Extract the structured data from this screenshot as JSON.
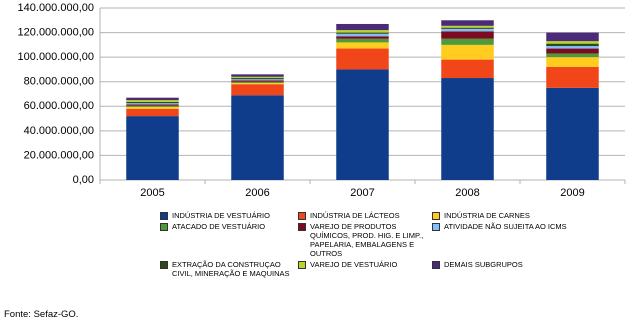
{
  "chart_data": {
    "type": "stacked_bar",
    "categories": [
      "2005",
      "2006",
      "2007",
      "2008",
      "2009"
    ],
    "series": [
      {
        "name": "INDÚSTRIA DE VESTUÁRIO",
        "color": "#0f3d8c",
        "values": [
          52000000,
          69000000,
          90000000,
          83000000,
          75000000
        ]
      },
      {
        "name": "INDÚSTRIA DE LÁCTEOS",
        "color": "#f0461a",
        "values": [
          6000000,
          9000000,
          17000000,
          15000000,
          17000000
        ]
      },
      {
        "name": "INDÚSTRIA DE CARNES",
        "color": "#ffcc1f",
        "values": [
          1500000,
          1000000,
          5000000,
          12000000,
          8000000
        ]
      },
      {
        "name": "ATACADO DE VESTUÁRIO",
        "color": "#4e9a3a",
        "values": [
          1000000,
          1000000,
          3000000,
          5000000,
          3000000
        ]
      },
      {
        "name": "VAREJO DE PRODUTOS QUÍMICOS, PROD. HIG. E LIMP., PAPELARIA, EMBALAGENS E OUTROS",
        "color": "#7c0a20",
        "values": [
          1000000,
          1000000,
          2000000,
          6000000,
          4000000
        ]
      },
      {
        "name": "ATIVIDADE NÃO SUJEITA AO ICMS",
        "color": "#80c0ff",
        "values": [
          1000000,
          1000000,
          2000000,
          2000000,
          2000000
        ]
      },
      {
        "name": "EXTRAÇÃO DA CONSTRUÇAO CIVIL, MINERAÇÃO E MAQUINAS",
        "color": "#2e4a1a",
        "values": [
          1000000,
          1000000,
          1000000,
          1000000,
          2000000
        ]
      },
      {
        "name": "VAREJO DE VESTUÁRIO",
        "color": "#b8d62a",
        "values": [
          1500000,
          1000000,
          2000000,
          1500000,
          2000000
        ]
      },
      {
        "name": "DEMAIS SUBGRUPOS",
        "color": "#4b2a78",
        "values": [
          2000000,
          2000000,
          5000000,
          4500000,
          7000000
        ]
      }
    ],
    "ylim": [
      0,
      140000000
    ],
    "yticks": [
      {
        "value": 0,
        "label": "0,00"
      },
      {
        "value": 20000000,
        "label": "20.000.000,00"
      },
      {
        "value": 40000000,
        "label": "40.000.000,00"
      },
      {
        "value": 60000000,
        "label": "60.000.000,00"
      },
      {
        "value": 80000000,
        "label": "80.000.000,00"
      },
      {
        "value": 100000000,
        "label": "100.000.000,00"
      },
      {
        "value": 120000000,
        "label": "120.000.000,00"
      },
      {
        "value": 140000000,
        "label": "140.000.000,00"
      }
    ],
    "grid": true,
    "source": "Fonte: Sefaz-GO."
  }
}
